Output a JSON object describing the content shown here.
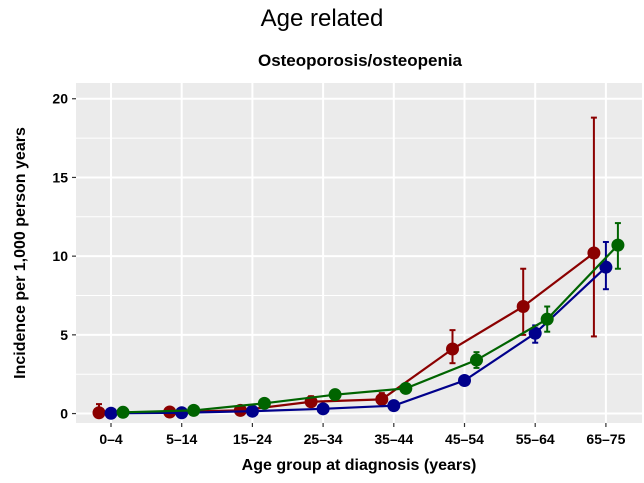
{
  "chart_data": {
    "type": "line",
    "title": "Age related",
    "subtitle": "Osteoporosis/osteopenia",
    "xlabel": "Age group at diagnosis (years)",
    "ylabel": "Incidence per 1,000 person years",
    "categories": [
      "0–4",
      "5–14",
      "15–24",
      "25–34",
      "35–44",
      "45–54",
      "55–64",
      "65–75"
    ],
    "ylim": [
      -0.6,
      21
    ],
    "yticks": [
      0,
      5,
      10,
      15,
      20
    ],
    "grid": true,
    "legend": "none",
    "series": [
      {
        "color": "#8b0000",
        "values": [
          0.05,
          0.1,
          0.2,
          0.75,
          0.9,
          4.1,
          6.8,
          10.2
        ],
        "err_low": [
          0.0,
          0.0,
          0.1,
          0.5,
          0.6,
          3.2,
          5.0,
          4.9
        ],
        "err_high": [
          0.6,
          0.3,
          0.35,
          1.1,
          1.3,
          5.3,
          9.2,
          18.8
        ],
        "x_offset": -0.12
      },
      {
        "color": "#00008b",
        "values": [
          0.02,
          0.05,
          0.15,
          0.3,
          0.5,
          2.1,
          5.1,
          9.3
        ],
        "err_low": [
          0.0,
          0.0,
          0.1,
          0.2,
          0.4,
          1.9,
          4.5,
          7.9
        ],
        "err_high": [
          0.1,
          0.15,
          0.25,
          0.4,
          0.65,
          2.4,
          5.6,
          10.9
        ],
        "x_offset": 0.0
      },
      {
        "color": "#006400",
        "values": [
          0.08,
          0.2,
          0.65,
          1.2,
          1.6,
          3.4,
          6.0,
          10.7
        ],
        "err_low": [
          0.0,
          0.1,
          0.5,
          1.0,
          1.4,
          2.9,
          5.2,
          9.2
        ],
        "err_high": [
          0.2,
          0.35,
          0.8,
          1.4,
          1.8,
          3.9,
          6.8,
          12.1
        ],
        "x_offset": 0.12
      }
    ]
  }
}
